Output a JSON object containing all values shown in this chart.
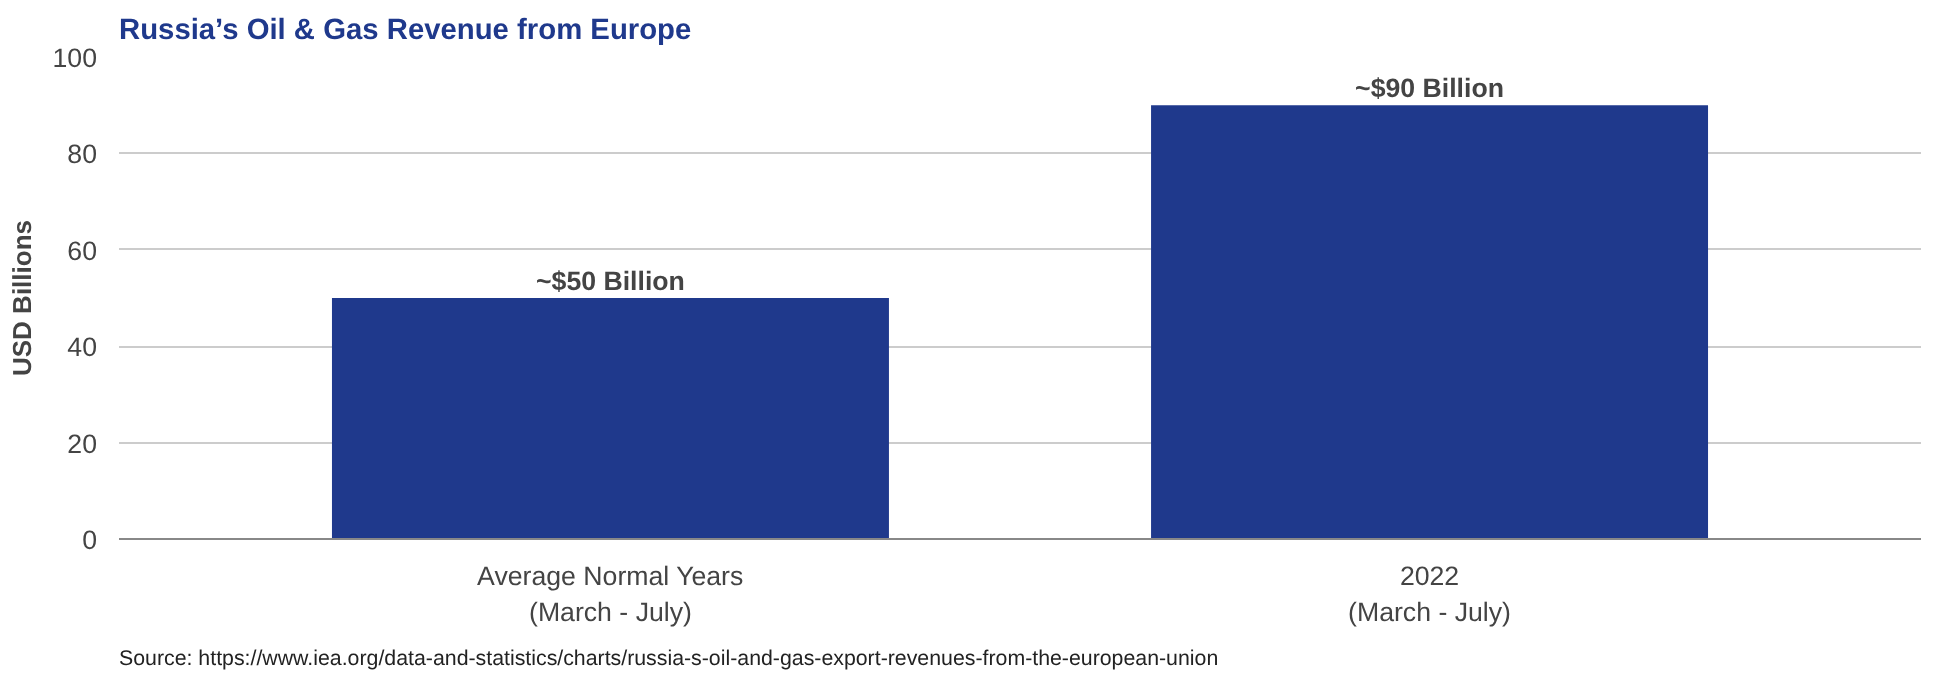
{
  "chart_data": {
    "type": "bar",
    "title": "Russia’s Oil & Gas Revenue from Europe",
    "ylabel": "USD Billions",
    "categories": [
      "Average Normal Years\n(March - July)",
      "2022\n(March - July)"
    ],
    "values": [
      50,
      90
    ],
    "color": "#1f398c",
    "value_labels": [
      "~$50 Billion",
      "~$90 Billion"
    ],
    "ylim": [
      0,
      100
    ],
    "yticks": [
      0,
      20,
      40,
      60,
      80,
      100
    ],
    "grid": "y",
    "annotations": [
      "Source: https://www.iea.org/data-and-statistics/charts/russia-s-oil-and-gas-export-revenues-from-the-european-union"
    ]
  }
}
